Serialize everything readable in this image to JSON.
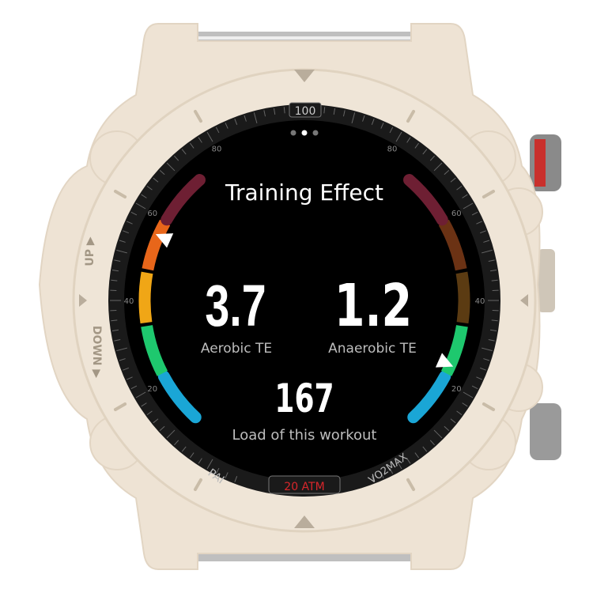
{
  "screen": {
    "title": "Training Effect",
    "page_dots": {
      "count": 3,
      "active": 1
    },
    "aerobic": {
      "value": "3.7",
      "label": "Aerobic TE",
      "level": 3.7,
      "max": 5
    },
    "anaerobic": {
      "value": "1.2",
      "label": "Anaerobic TE",
      "level": 1.2,
      "max": 5
    },
    "load": {
      "value": "167",
      "label": "Load of this workout"
    }
  },
  "bezel": {
    "top_mark": "100",
    "left_marks": [
      "80",
      "60",
      "40",
      "20"
    ],
    "right_marks": [
      "80",
      "60",
      "40",
      "20"
    ],
    "bottom_left": "PAI",
    "bottom_right": "VO2MAX",
    "bottom_center": "20 ATM"
  },
  "case": {
    "up_label": "UP",
    "down_label": "DOWN"
  },
  "colors": {
    "case": "#eee3d4",
    "aerobic_segments": [
      "#1aa6d6",
      "#1ec86e",
      "#f0a616",
      "#e8661a",
      "#6e1f33"
    ],
    "anaerobic_segments": [
      "#1aa6d6",
      "#1ec86e",
      "#5b3b12",
      "#6b3214",
      "#6e1f33"
    ],
    "atm_text": "#d8262b"
  }
}
